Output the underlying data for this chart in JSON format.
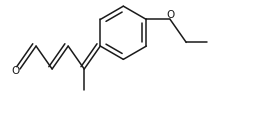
{
  "background": "#ffffff",
  "line_color": "#1a1a1a",
  "line_width": 1.1,
  "figsize": [
    2.63,
    1.16
  ],
  "dpi": 100
}
